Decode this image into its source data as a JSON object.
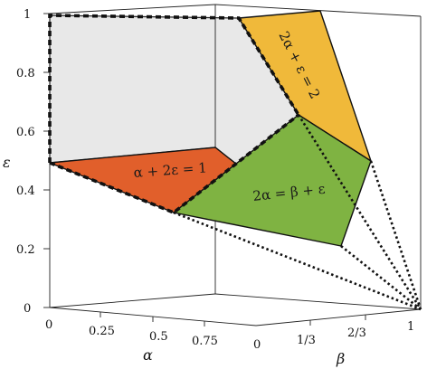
{
  "axes": {
    "epsilon_label": "ε",
    "alpha_label": "α",
    "beta_label": "β",
    "epsilon_ticks": [
      "0",
      "0.2",
      "0.4",
      "0.6",
      "0.8",
      "1"
    ],
    "alpha_ticks": [
      "0",
      "0.25",
      "0.5",
      "0.75"
    ],
    "beta_ticks": [
      "0",
      "1/3",
      "2/3",
      "1"
    ]
  },
  "regions": {
    "orange_label": "α + 2ε = 1",
    "yellow_label": "2α + ε = 2",
    "green_label": "2α = β + ε"
  },
  "colors": {
    "gray_face": "#e8e8e8",
    "orange": "#e15f2b",
    "yellow": "#f0b93a",
    "green": "#7fb342"
  }
}
